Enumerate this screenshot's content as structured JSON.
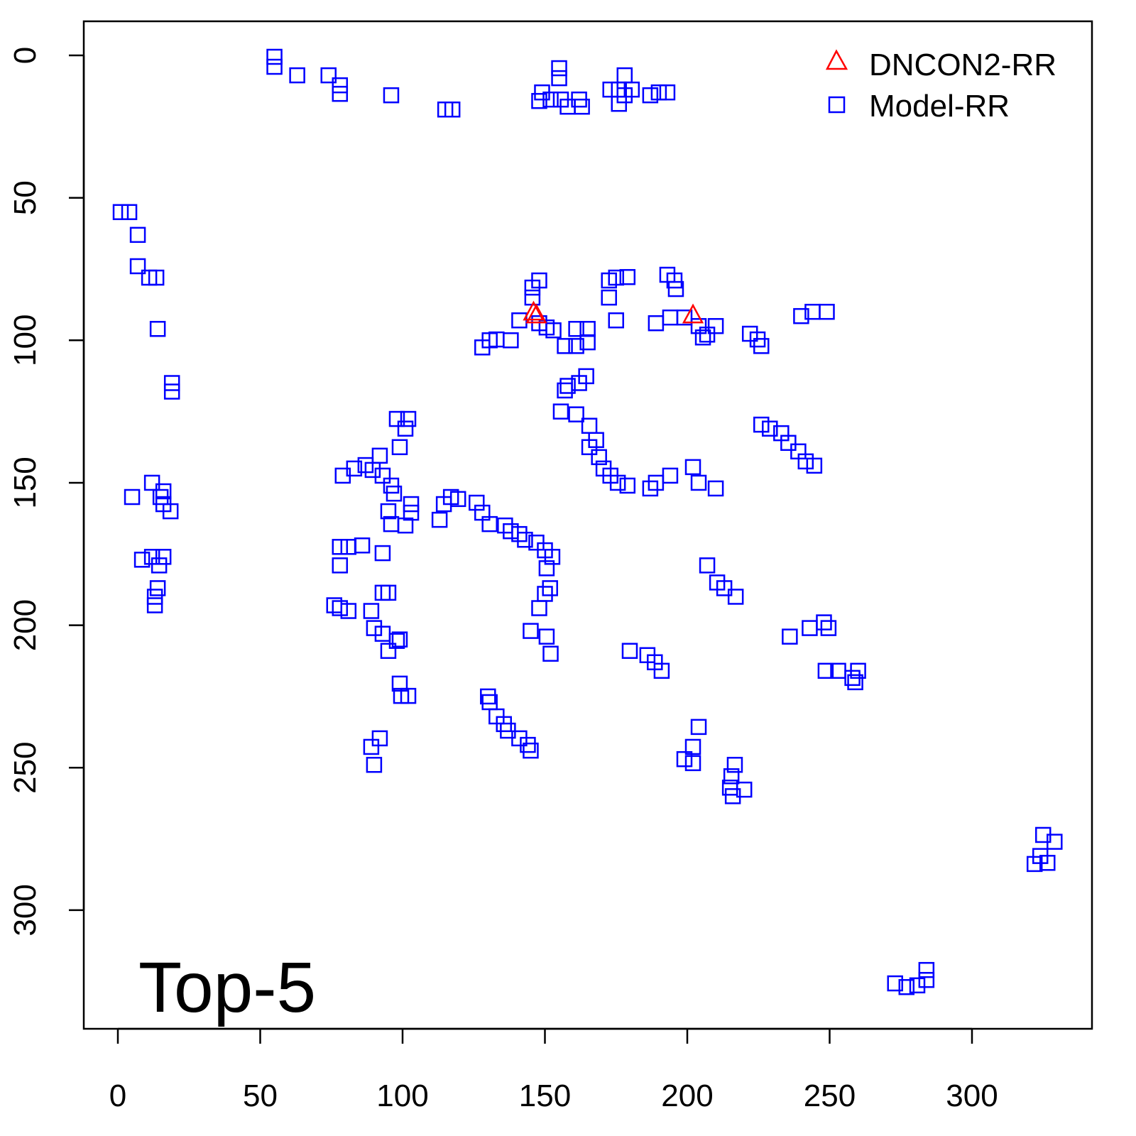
{
  "chart_data": {
    "type": "scatter",
    "title": "",
    "annotation": "Top-5",
    "xlabel": "",
    "ylabel": "",
    "xlim": [
      -12,
      342
    ],
    "ylim": [
      342,
      -12
    ],
    "y_reversed": true,
    "grid": false,
    "legend_position": "top-right",
    "xticks": [
      0,
      50,
      100,
      150,
      200,
      250,
      300
    ],
    "yticks": [
      0,
      50,
      100,
      150,
      200,
      250,
      300
    ],
    "series": [
      {
        "name": "DNCON2-RR",
        "marker": "triangle",
        "color": "#ff0000",
        "points": [
          [
            146,
            90
          ],
          [
            147,
            91
          ],
          [
            202,
            91
          ]
        ]
      },
      {
        "name": "Model-RR",
        "marker": "square",
        "color": "#0000ff",
        "points": [
          [
            55,
            0.5
          ],
          [
            55,
            4
          ],
          [
            63,
            7
          ],
          [
            74,
            7
          ],
          [
            78,
            10.5
          ],
          [
            78,
            13.5
          ],
          [
            96,
            14
          ],
          [
            115,
            19
          ],
          [
            117.5,
            19
          ],
          [
            155,
            4.5
          ],
          [
            155,
            8
          ],
          [
            149,
            13
          ],
          [
            152,
            15.5
          ],
          [
            155.6,
            15.5
          ],
          [
            158,
            18
          ],
          [
            162,
            15.5
          ],
          [
            148,
            16
          ],
          [
            163,
            18
          ],
          [
            178,
            7
          ],
          [
            176,
            12
          ],
          [
            178,
            14
          ],
          [
            173,
            12
          ],
          [
            180.5,
            12
          ],
          [
            176,
            17
          ],
          [
            187,
            14
          ],
          [
            190,
            13
          ],
          [
            193,
            13
          ],
          [
            1,
            55
          ],
          [
            4,
            55
          ],
          [
            7,
            63
          ],
          [
            7,
            74
          ],
          [
            11,
            78
          ],
          [
            13.5,
            78
          ],
          [
            14,
            96
          ],
          [
            19,
            115
          ],
          [
            19,
            118
          ],
          [
            5,
            155
          ],
          [
            12,
            150
          ],
          [
            16,
            153
          ],
          [
            16,
            157.5
          ],
          [
            18.5,
            160
          ],
          [
            15,
            155
          ],
          [
            8.5,
            177
          ],
          [
            12,
            176
          ],
          [
            16,
            176
          ],
          [
            14.5,
            179
          ],
          [
            14,
            187
          ],
          [
            13,
            190
          ],
          [
            13,
            193
          ],
          [
            148,
            79
          ],
          [
            145.6,
            81.5
          ],
          [
            145.6,
            85
          ],
          [
            141,
            93
          ],
          [
            150.6,
            95.5
          ],
          [
            148,
            94
          ],
          [
            153,
            96.5
          ],
          [
            128,
            102.5
          ],
          [
            130.6,
            100
          ],
          [
            133,
            99.7
          ],
          [
            138,
            100
          ],
          [
            157,
            102
          ],
          [
            161,
            96
          ],
          [
            161,
            102
          ],
          [
            165,
            96
          ],
          [
            165,
            100.7
          ],
          [
            172.5,
            79
          ],
          [
            172.5,
            85
          ],
          [
            175,
            78
          ],
          [
            179,
            77.8
          ],
          [
            175,
            93
          ],
          [
            193,
            77
          ],
          [
            195.5,
            79
          ],
          [
            196,
            82
          ],
          [
            189,
            94
          ],
          [
            194,
            92
          ],
          [
            199,
            92
          ],
          [
            204,
            95
          ],
          [
            207,
            98
          ],
          [
            210,
            95
          ],
          [
            205.5,
            99
          ],
          [
            222,
            97.7
          ],
          [
            224.7,
            99.7
          ],
          [
            226,
            102
          ],
          [
            240,
            91.5
          ],
          [
            244,
            90
          ],
          [
            249,
            90
          ],
          [
            157,
            117.6
          ],
          [
            158,
            116
          ],
          [
            162,
            115
          ],
          [
            164.5,
            112.6
          ],
          [
            155.6,
            125
          ],
          [
            161,
            126
          ],
          [
            165.6,
            130
          ],
          [
            165.6,
            137.5
          ],
          [
            168,
            135
          ],
          [
            169,
            141
          ],
          [
            170.6,
            145
          ],
          [
            173,
            147.5
          ],
          [
            175.6,
            150
          ],
          [
            179,
            151
          ],
          [
            187,
            152
          ],
          [
            189,
            150
          ],
          [
            194,
            147.5
          ],
          [
            202,
            144.5
          ],
          [
            204,
            150
          ],
          [
            210,
            152
          ],
          [
            226,
            129.6
          ],
          [
            229,
            131
          ],
          [
            233,
            132.6
          ],
          [
            235.5,
            136
          ],
          [
            239,
            139
          ],
          [
            241.6,
            142.5
          ],
          [
            244.6,
            144
          ],
          [
            101,
            131
          ],
          [
            102,
            127.6
          ],
          [
            99,
            137.5
          ],
          [
            98,
            127.6
          ],
          [
            79,
            147.5
          ],
          [
            83,
            145
          ],
          [
            87,
            143.8
          ],
          [
            89.5,
            145.5
          ],
          [
            92,
            140.5
          ],
          [
            93,
            147.5
          ],
          [
            96,
            151
          ],
          [
            97,
            153.8
          ],
          [
            95,
            160
          ],
          [
            96,
            164.5
          ],
          [
            101,
            165
          ],
          [
            103,
            157.5
          ],
          [
            103,
            160.5
          ],
          [
            113,
            163
          ],
          [
            114.5,
            157.5
          ],
          [
            117,
            155
          ],
          [
            119.5,
            155.7
          ],
          [
            126,
            157
          ],
          [
            128,
            160.5
          ],
          [
            130.6,
            164.5
          ],
          [
            136,
            165
          ],
          [
            138,
            167
          ],
          [
            141,
            168
          ],
          [
            143,
            170
          ],
          [
            147,
            171
          ],
          [
            150,
            173.7
          ],
          [
            152.6,
            176
          ],
          [
            150.6,
            180
          ],
          [
            151.8,
            187
          ],
          [
            150,
            189
          ],
          [
            148,
            194
          ],
          [
            145,
            202
          ],
          [
            150.6,
            204
          ],
          [
            152,
            210
          ],
          [
            78,
            172.5
          ],
          [
            81,
            172.5
          ],
          [
            85.8,
            172
          ],
          [
            78,
            179
          ],
          [
            93,
            174.7
          ],
          [
            76,
            193
          ],
          [
            78,
            194
          ],
          [
            81,
            195
          ],
          [
            89,
            195
          ],
          [
            93,
            188.6
          ],
          [
            95,
            188.6
          ],
          [
            90,
            201
          ],
          [
            93,
            203
          ],
          [
            95,
            209
          ],
          [
            98,
            205.5
          ],
          [
            99,
            205
          ],
          [
            99,
            220.5
          ],
          [
            99.5,
            224.8
          ],
          [
            102,
            224.8
          ],
          [
            89,
            242.7
          ],
          [
            92,
            239.7
          ],
          [
            90,
            249
          ],
          [
            130,
            225
          ],
          [
            130.6,
            227
          ],
          [
            133,
            232
          ],
          [
            135.6,
            234.7
          ],
          [
            137,
            237
          ],
          [
            141,
            239.7
          ],
          [
            144,
            242
          ],
          [
            145,
            244
          ],
          [
            179.8,
            209
          ],
          [
            186,
            210.5
          ],
          [
            188.6,
            213
          ],
          [
            191,
            216
          ],
          [
            207,
            179
          ],
          [
            210.5,
            185
          ],
          [
            213,
            187
          ],
          [
            217,
            190
          ],
          [
            236,
            204
          ],
          [
            243,
            201
          ],
          [
            248,
            199
          ],
          [
            249.6,
            201
          ],
          [
            248.6,
            216
          ],
          [
            253,
            216
          ],
          [
            258,
            218.5
          ],
          [
            260,
            216
          ],
          [
            259,
            220
          ],
          [
            204,
            235.7
          ],
          [
            202,
            242.7
          ],
          [
            199,
            247
          ],
          [
            202,
            248.4
          ],
          [
            216.7,
            249
          ],
          [
            215.5,
            253
          ],
          [
            216,
            260
          ],
          [
            220,
            257.7
          ],
          [
            215,
            257
          ],
          [
            325,
            273.6
          ],
          [
            329,
            276
          ],
          [
            324,
            281
          ],
          [
            322,
            283.8
          ],
          [
            326.5,
            283.4
          ],
          [
            273,
            325.7
          ],
          [
            277,
            327
          ],
          [
            280.8,
            326.4
          ],
          [
            284,
            321
          ],
          [
            284,
            324.5
          ]
        ]
      }
    ]
  }
}
